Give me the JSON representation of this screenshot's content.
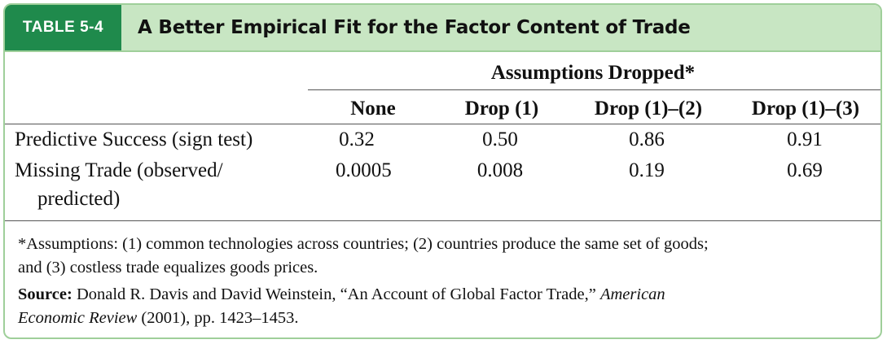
{
  "table": {
    "tag": "TABLE 5-4",
    "title": "A Better Empirical Fit for the Factor Content of Trade",
    "group_header": "Assumptions Dropped*",
    "columns": [
      "None",
      "Drop (1)",
      "Drop (1)–(2)",
      "Drop (1)–(3)"
    ],
    "rows": [
      {
        "label_lines": [
          "Predictive Success (sign test)"
        ],
        "values": [
          "0.32",
          "0.50",
          "0.86",
          "0.91"
        ]
      },
      {
        "label_lines": [
          "Missing Trade (observed/",
          "predicted)"
        ],
        "values": [
          "0.0005",
          "0.008",
          "0.19",
          "0.69"
        ]
      }
    ]
  },
  "footnote": {
    "lines": [
      "*Assumptions: (1) common technologies across countries; (2) countries produce the same set of goods;",
      "and (3) costless trade equalizes goods prices."
    ]
  },
  "source": {
    "label": "Source:",
    "text_before": " Donald R. Davis and David Weinstein, “An Account of Global Factor Trade,” ",
    "journal_line1": "American",
    "journal_line2": "Economic Review",
    "text_after": " (2001), pp. 1423–1453."
  }
}
